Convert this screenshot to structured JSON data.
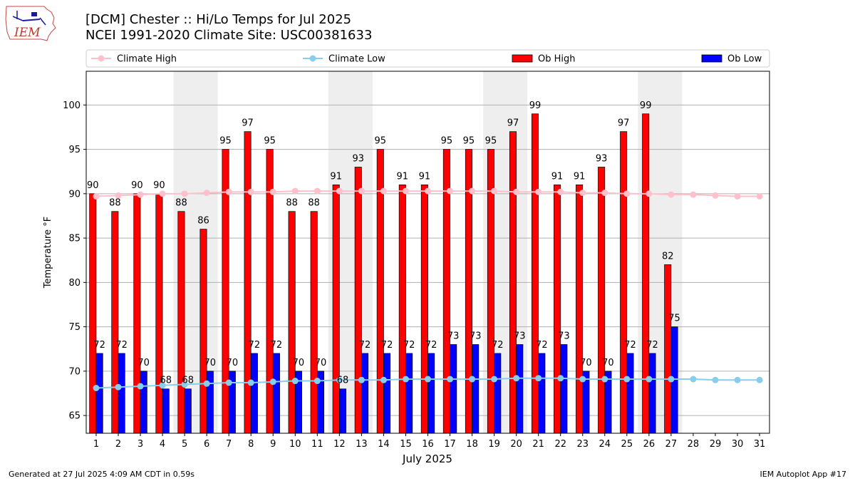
{
  "logo": {
    "text": "IEM"
  },
  "title_line1": "[DCM] Chester :: Hi/Lo Temps for Jul 2025",
  "title_line2": "NCEI 1991-2020 Climate Site: USC00381633",
  "footer_left": "Generated at 27 Jul 2025 4:09 AM CDT in 0.59s",
  "footer_right": "IEM Autoplot App #17",
  "colors": {
    "ob_high": "#ff0000",
    "ob_low": "#0000ff",
    "climate_high": "#ffc0cb",
    "climate_low": "#87ceeb",
    "weekend_shade": "#eeeeee",
    "grid": "#b0b0b0"
  },
  "chart_data": {
    "type": "bar",
    "xlabel": "July 2025",
    "ylabel": "Temperature °F",
    "ylim": [
      63,
      103.8
    ],
    "yticks": [
      65,
      70,
      75,
      80,
      85,
      90,
      95,
      100
    ],
    "grid": "horizontal",
    "legend_position": "top",
    "x": [
      1,
      2,
      3,
      4,
      5,
      6,
      7,
      8,
      9,
      10,
      11,
      12,
      13,
      14,
      15,
      16,
      17,
      18,
      19,
      20,
      21,
      22,
      23,
      24,
      25,
      26,
      27,
      28,
      29,
      30,
      31
    ],
    "weekend_days": [
      [
        5,
        6
      ],
      [
        12,
        13
      ],
      [
        19,
        20
      ],
      [
        26,
        27
      ]
    ],
    "series": [
      {
        "name": "Climate High",
        "kind": "line",
        "values": [
          89.7,
          89.8,
          89.9,
          90.0,
          90.0,
          90.1,
          90.2,
          90.2,
          90.2,
          90.3,
          90.3,
          90.3,
          90.3,
          90.3,
          90.3,
          90.3,
          90.3,
          90.3,
          90.3,
          90.2,
          90.2,
          90.2,
          90.1,
          90.1,
          90.0,
          90.0,
          89.9,
          89.9,
          89.8,
          89.7,
          89.7
        ]
      },
      {
        "name": "Climate Low",
        "kind": "line",
        "values": [
          68.1,
          68.2,
          68.3,
          68.4,
          68.5,
          68.6,
          68.7,
          68.7,
          68.8,
          68.9,
          68.9,
          69.0,
          69.0,
          69.0,
          69.1,
          69.1,
          69.1,
          69.1,
          69.1,
          69.2,
          69.2,
          69.2,
          69.1,
          69.1,
          69.1,
          69.1,
          69.1,
          69.1,
          69.0,
          69.0,
          69.0
        ]
      },
      {
        "name": "Ob High",
        "kind": "bar",
        "values": [
          90,
          88,
          90,
          90,
          88,
          86,
          95,
          97,
          95,
          88,
          88,
          91,
          93,
          95,
          91,
          91,
          95,
          95,
          95,
          97,
          99,
          91,
          91,
          93,
          97,
          99,
          82,
          null,
          null,
          null,
          null
        ]
      },
      {
        "name": "Ob Low",
        "kind": "bar",
        "values": [
          72,
          72,
          70,
          68,
          68,
          70,
          70,
          72,
          72,
          70,
          70,
          68,
          72,
          72,
          72,
          72,
          73,
          73,
          72,
          73,
          72,
          73,
          70,
          70,
          72,
          72,
          75,
          null,
          null,
          null,
          null
        ]
      }
    ]
  }
}
